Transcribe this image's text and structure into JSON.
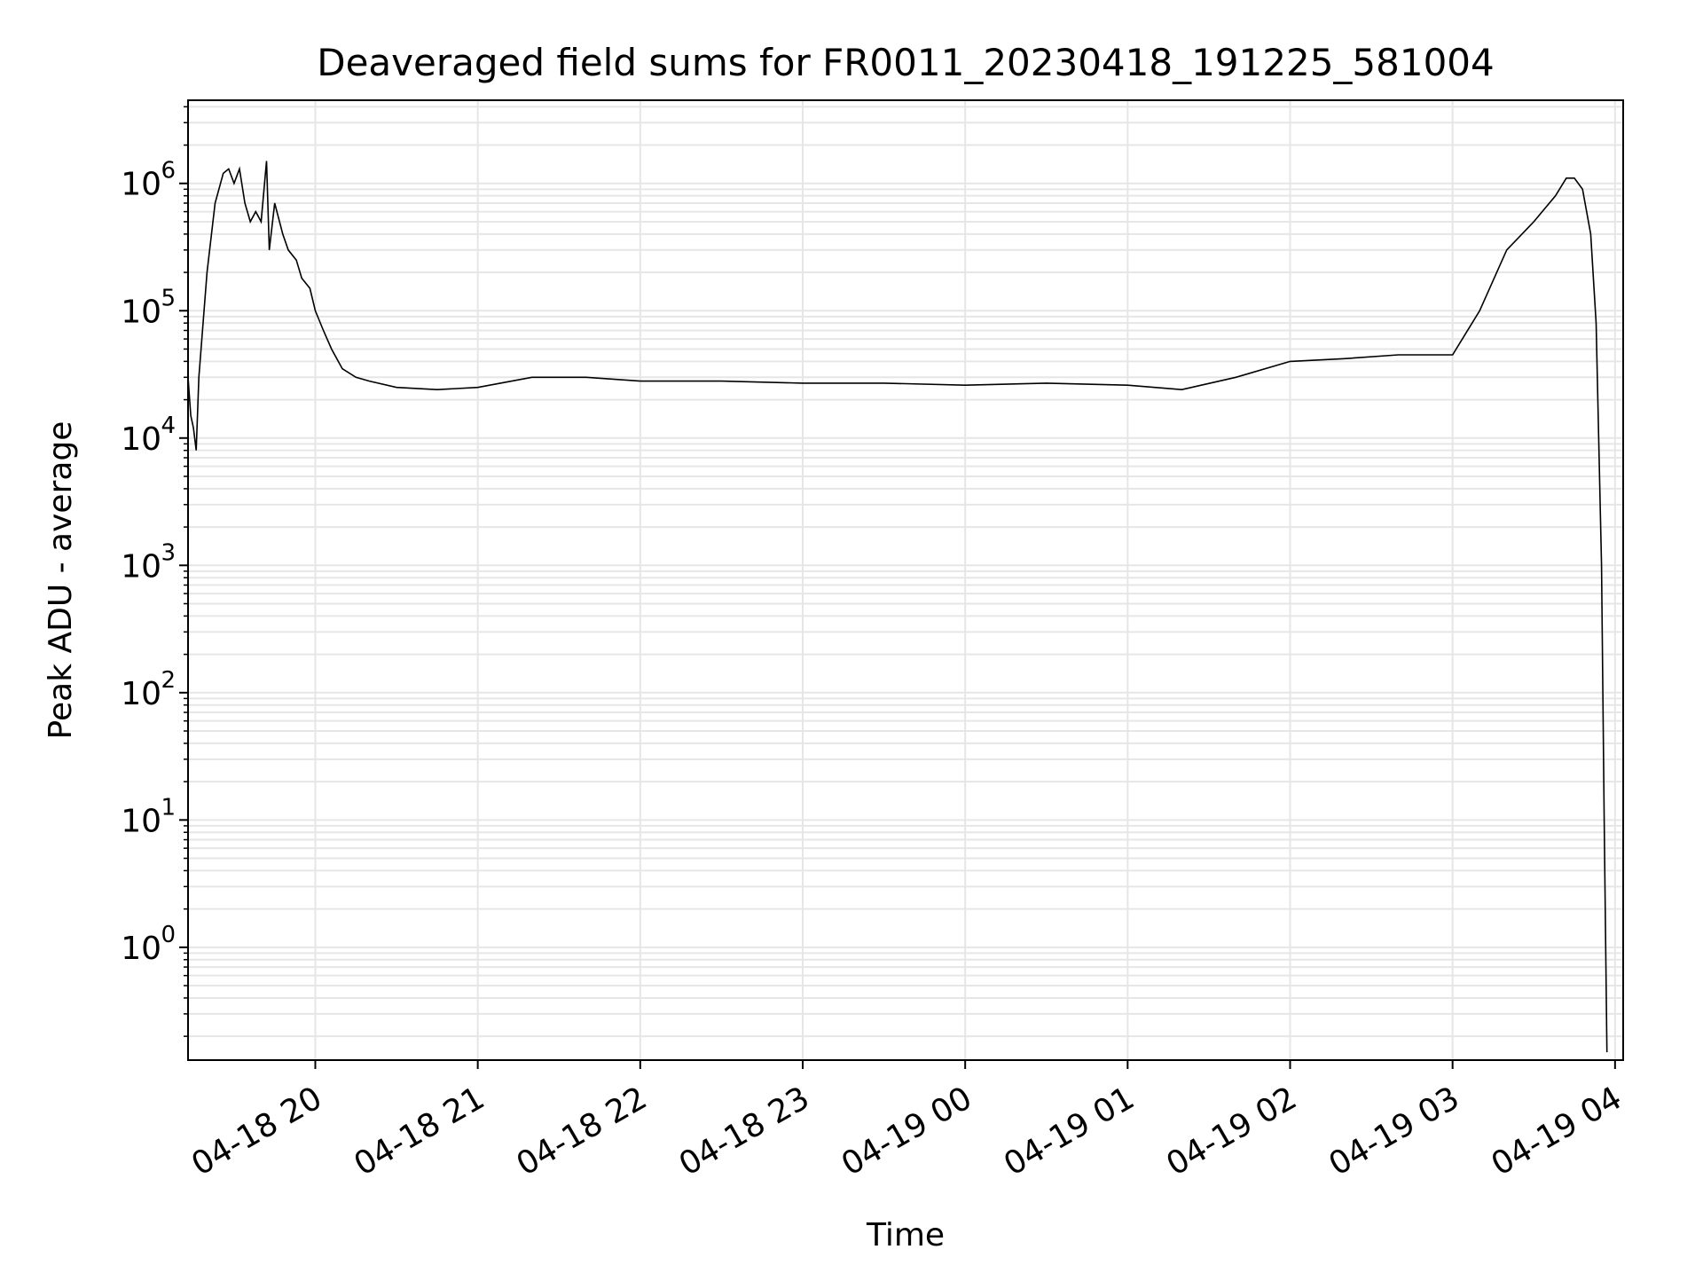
{
  "chart_data": {
    "type": "line",
    "title": "Deaveraged field sums for FR0011_20230418_191225_581004",
    "xlabel": "Time",
    "ylabel": "Peak ADU - average",
    "y_scale": "log",
    "ylim": [
      0.13,
      4500000
    ],
    "xlim": [
      "2023-04-18 19:13",
      "2023-04-19 04:03"
    ],
    "x_ticks": [
      {
        "time": "2023-04-18 20:00",
        "label": "04-18 20"
      },
      {
        "time": "2023-04-18 21:00",
        "label": "04-18 21"
      },
      {
        "time": "2023-04-18 22:00",
        "label": "04-18 22"
      },
      {
        "time": "2023-04-18 23:00",
        "label": "04-18 23"
      },
      {
        "time": "2023-04-19 00:00",
        "label": "04-19 00"
      },
      {
        "time": "2023-04-19 01:00",
        "label": "04-19 01"
      },
      {
        "time": "2023-04-19 02:00",
        "label": "04-19 02"
      },
      {
        "time": "2023-04-19 03:00",
        "label": "04-19 03"
      },
      {
        "time": "2023-04-19 04:00",
        "label": "04-19 04"
      }
    ],
    "y_ticks": [
      {
        "value": 1,
        "base": "10",
        "exp": "0"
      },
      {
        "value": 10,
        "base": "10",
        "exp": "1"
      },
      {
        "value": 100,
        "base": "10",
        "exp": "2"
      },
      {
        "value": 1000,
        "base": "10",
        "exp": "3"
      },
      {
        "value": 10000,
        "base": "10",
        "exp": "4"
      },
      {
        "value": 100000,
        "base": "10",
        "exp": "5"
      },
      {
        "value": 1000000,
        "base": "10",
        "exp": "6"
      }
    ],
    "grid": {
      "major": true,
      "minor": true
    },
    "colors": {
      "line": "#000000",
      "grid": "#e6e6e6",
      "axes": "#000000"
    },
    "series": [
      {
        "points": [
          [
            "2023-04-18 19:13",
            30000
          ],
          [
            "2023-04-18 19:14",
            15000
          ],
          [
            "2023-04-18 19:15",
            12000
          ],
          [
            "2023-04-18 19:16",
            8000
          ],
          [
            "2023-04-18 19:17",
            30000
          ],
          [
            "2023-04-18 19:20",
            200000
          ],
          [
            "2023-04-18 19:23",
            700000
          ],
          [
            "2023-04-18 19:26",
            1200000
          ],
          [
            "2023-04-18 19:28",
            1300000
          ],
          [
            "2023-04-18 19:30",
            1000000
          ],
          [
            "2023-04-18 19:32",
            1300000
          ],
          [
            "2023-04-18 19:34",
            700000
          ],
          [
            "2023-04-18 19:36",
            500000
          ],
          [
            "2023-04-18 19:38",
            600000
          ],
          [
            "2023-04-18 19:40",
            500000
          ],
          [
            "2023-04-18 19:42",
            1500000
          ],
          [
            "2023-04-18 19:43",
            300000
          ],
          [
            "2023-04-18 19:45",
            700000
          ],
          [
            "2023-04-18 19:48",
            400000
          ],
          [
            "2023-04-18 19:50",
            300000
          ],
          [
            "2023-04-18 19:53",
            250000
          ],
          [
            "2023-04-18 19:55",
            180000
          ],
          [
            "2023-04-18 19:58",
            150000
          ],
          [
            "2023-04-18 20:00",
            100000
          ],
          [
            "2023-04-18 20:03",
            70000
          ],
          [
            "2023-04-18 20:06",
            50000
          ],
          [
            "2023-04-18 20:10",
            35000
          ],
          [
            "2023-04-18 20:15",
            30000
          ],
          [
            "2023-04-18 20:20",
            28000
          ],
          [
            "2023-04-18 20:30",
            25000
          ],
          [
            "2023-04-18 20:45",
            24000
          ],
          [
            "2023-04-18 21:00",
            25000
          ],
          [
            "2023-04-18 21:20",
            30000
          ],
          [
            "2023-04-18 21:40",
            30000
          ],
          [
            "2023-04-18 22:00",
            28000
          ],
          [
            "2023-04-18 22:30",
            28000
          ],
          [
            "2023-04-18 23:00",
            27000
          ],
          [
            "2023-04-18 23:30",
            27000
          ],
          [
            "2023-04-19 00:00",
            26000
          ],
          [
            "2023-04-19 00:30",
            27000
          ],
          [
            "2023-04-19 01:00",
            26000
          ],
          [
            "2023-04-19 01:20",
            24000
          ],
          [
            "2023-04-19 01:40",
            30000
          ],
          [
            "2023-04-19 02:00",
            40000
          ],
          [
            "2023-04-19 02:20",
            42000
          ],
          [
            "2023-04-19 02:40",
            45000
          ],
          [
            "2023-04-19 03:00",
            45000
          ],
          [
            "2023-04-19 03:10",
            100000
          ],
          [
            "2023-04-19 03:20",
            300000
          ],
          [
            "2023-04-19 03:30",
            500000
          ],
          [
            "2023-04-19 03:38",
            800000
          ],
          [
            "2023-04-19 03:42",
            1100000
          ],
          [
            "2023-04-19 03:45",
            1100000
          ],
          [
            "2023-04-19 03:48",
            900000
          ],
          [
            "2023-04-19 03:51",
            400000
          ],
          [
            "2023-04-19 03:53",
            80000
          ],
          [
            "2023-04-19 03:55",
            1000
          ],
          [
            "2023-04-19 03:56",
            10
          ],
          [
            "2023-04-19 03:57",
            0.15
          ]
        ]
      }
    ]
  }
}
